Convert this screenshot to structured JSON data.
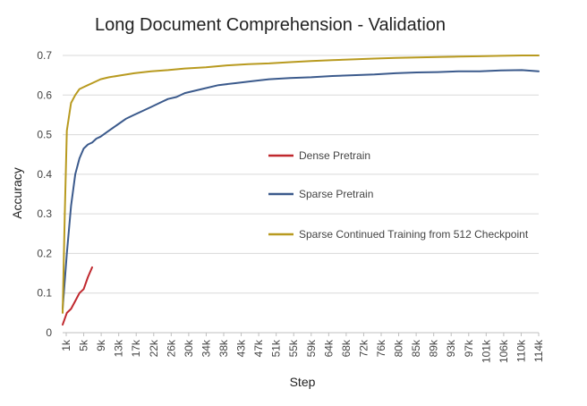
{
  "chart_data": {
    "type": "line",
    "title": "Long Document Comprehension - Validation",
    "xlabel": "Step",
    "ylabel": "Accuracy",
    "ylim": [
      0,
      0.7
    ],
    "yticks": [
      "0",
      "0.1",
      "0.2",
      "0.3",
      "0.4",
      "0.5",
      "0.6",
      "0.7"
    ],
    "xlim": [
      1,
      114
    ],
    "xticks": [
      "1k",
      "5k",
      "9k",
      "13k",
      "17k",
      "22k",
      "26k",
      "30k",
      "34k",
      "38k",
      "43k",
      "47k",
      "51k",
      "55k",
      "59k",
      "64k",
      "68k",
      "72k",
      "76k",
      "80k",
      "85k",
      "89k",
      "93k",
      "97k",
      "101k",
      "106k",
      "110k",
      "114k"
    ],
    "grid": true,
    "legend_placement": "center",
    "series": [
      {
        "name": "Dense Pretrain",
        "color": "#c0282e",
        "x": [
          1,
          2,
          3,
          4,
          5,
          6,
          7,
          8
        ],
        "y": [
          0.02,
          0.05,
          0.06,
          0.08,
          0.1,
          0.11,
          0.14,
          0.165
        ]
      },
      {
        "name": "Sparse Pretrain",
        "color": "#3b5a8c",
        "x": [
          1,
          2,
          3,
          4,
          5,
          6,
          7,
          8,
          9,
          10,
          12,
          14,
          16,
          18,
          20,
          22,
          24,
          26,
          28,
          30,
          34,
          38,
          42,
          46,
          50,
          55,
          60,
          65,
          70,
          75,
          80,
          85,
          90,
          95,
          100,
          105,
          110,
          114
        ],
        "y": [
          0.06,
          0.2,
          0.32,
          0.4,
          0.44,
          0.465,
          0.475,
          0.48,
          0.49,
          0.495,
          0.51,
          0.525,
          0.54,
          0.55,
          0.56,
          0.57,
          0.58,
          0.59,
          0.595,
          0.605,
          0.615,
          0.625,
          0.63,
          0.635,
          0.64,
          0.643,
          0.645,
          0.648,
          0.65,
          0.652,
          0.655,
          0.657,
          0.658,
          0.66,
          0.66,
          0.662,
          0.663,
          0.66
        ]
      },
      {
        "name": "Sparse Continued Training from 512 Checkpoint",
        "color": "#b89a1f",
        "x": [
          1,
          1.5,
          2,
          3,
          4,
          5,
          6,
          7,
          8,
          10,
          12,
          15,
          18,
          22,
          26,
          30,
          35,
          40,
          45,
          50,
          55,
          60,
          65,
          70,
          75,
          80,
          85,
          90,
          95,
          100,
          105,
          110,
          114
        ],
        "y": [
          0.05,
          0.3,
          0.51,
          0.58,
          0.6,
          0.615,
          0.62,
          0.625,
          0.63,
          0.64,
          0.645,
          0.65,
          0.655,
          0.66,
          0.663,
          0.667,
          0.67,
          0.675,
          0.678,
          0.68,
          0.683,
          0.686,
          0.688,
          0.69,
          0.692,
          0.694,
          0.695,
          0.696,
          0.697,
          0.698,
          0.699,
          0.7,
          0.7
        ]
      }
    ]
  }
}
